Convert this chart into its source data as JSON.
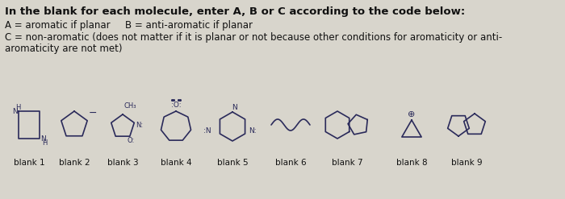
{
  "title_line": "In the blank for each molecule, enter A, B or C according to the code below:",
  "line_a": "A = aromatic if planar",
  "line_b": "B = anti-aromatic if planar",
  "line_c": "C = non-aromatic (does not matter if it is planar or not because other conditions for aromaticity or anti-",
  "line_d": "aromaticity are not met)",
  "blank_labels": [
    "blank 1",
    "blank 2",
    "blank 3",
    "blank 4",
    "blank 5",
    "blank 6",
    "blank 7",
    "blank 8",
    "blank 9"
  ],
  "bg_color": "#d8d5cc",
  "text_color": "#111111",
  "molecule_color": "#2a2a5a",
  "font_size_title": 9.5,
  "font_size_body": 8.5,
  "font_size_label": 7.5
}
